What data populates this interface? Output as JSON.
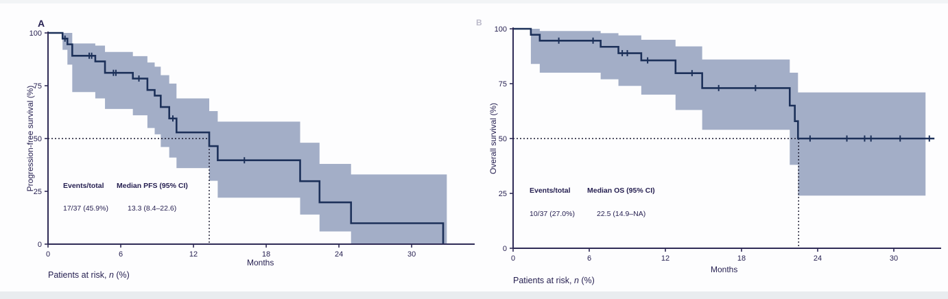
{
  "page": {
    "panel_a": "A",
    "panel_b": "B"
  },
  "colors": {
    "curve": "#1c3059",
    "band": "#a3aec7",
    "text": "#262051",
    "axis": "#2e2a55",
    "dash": "#15152b"
  },
  "chart_data": [
    {
      "type": "line",
      "subtype": "kaplan_meier_step",
      "panel": "A",
      "ylabel": "Progression-free survival (%)",
      "xlabel": "Months",
      "xticks": [
        0,
        6,
        12,
        18,
        24,
        30
      ],
      "yticks": [
        0,
        25,
        50,
        75,
        100
      ],
      "xlim": [
        0,
        35
      ],
      "ylim": [
        0,
        100
      ],
      "grid": false,
      "legend": "none",
      "median": {
        "time_months": 13.3,
        "survival_pct": 50
      },
      "annotation": {
        "events_header": "Events/total",
        "median_header": "Median PFS (95% CI)",
        "events_value": "17/37 (45.9%)",
        "median_value": "13.3  (8.4–22.6)"
      },
      "footer": {
        "prefix": "Patients at risk, ",
        "n": "n",
        "suffix": " (%)"
      },
      "curve_points": [
        [
          0,
          100
        ],
        [
          1.2,
          100
        ],
        [
          1.2,
          97.3
        ],
        [
          1.6,
          97.3
        ],
        [
          1.6,
          94.6
        ],
        [
          2.0,
          94.6
        ],
        [
          2.0,
          89.2
        ],
        [
          3.9,
          89.2
        ],
        [
          3.9,
          86.5
        ],
        [
          4.7,
          86.5
        ],
        [
          4.7,
          81.1
        ],
        [
          7.0,
          81.1
        ],
        [
          7.0,
          78.4
        ],
        [
          8.2,
          78.4
        ],
        [
          8.2,
          73.0
        ],
        [
          8.8,
          73.0
        ],
        [
          8.8,
          70.3
        ],
        [
          9.3,
          70.3
        ],
        [
          9.3,
          64.9
        ],
        [
          10.0,
          64.9
        ],
        [
          10.0,
          59.5
        ],
        [
          10.6,
          59.5
        ],
        [
          10.6,
          52.9
        ],
        [
          13.3,
          52.9
        ],
        [
          13.3,
          46.4
        ],
        [
          14.0,
          46.4
        ],
        [
          14.0,
          39.7
        ],
        [
          20.8,
          39.7
        ],
        [
          20.8,
          29.8
        ],
        [
          22.4,
          29.8
        ],
        [
          22.4,
          19.8
        ],
        [
          25.0,
          19.8
        ],
        [
          25.0,
          9.9
        ],
        [
          32.6,
          9.9
        ],
        [
          32.6,
          0
        ]
      ],
      "censor_marks": [
        [
          1.4,
          97.3
        ],
        [
          3.4,
          89.2
        ],
        [
          3.6,
          89.2
        ],
        [
          5.4,
          81.1
        ],
        [
          5.6,
          81.1
        ],
        [
          7.5,
          78.4
        ],
        [
          10.3,
          59.5
        ],
        [
          16.2,
          39.7
        ]
      ],
      "ci_band": [
        [
          0,
          1.2,
          100,
          100
        ],
        [
          1.2,
          1.6,
          100,
          92
        ],
        [
          1.6,
          2.0,
          100,
          85
        ],
        [
          2.0,
          3.9,
          95,
          72
        ],
        [
          3.9,
          4.7,
          94,
          69
        ],
        [
          4.7,
          7.0,
          91,
          64
        ],
        [
          7.0,
          8.2,
          89,
          61
        ],
        [
          8.2,
          8.8,
          86,
          55
        ],
        [
          8.8,
          9.3,
          84,
          52
        ],
        [
          9.3,
          10.0,
          80,
          46
        ],
        [
          10.0,
          10.6,
          76,
          41
        ],
        [
          10.6,
          13.3,
          69,
          36
        ],
        [
          13.3,
          14.0,
          63,
          30
        ],
        [
          14.0,
          20.8,
          58,
          22
        ],
        [
          20.8,
          22.4,
          48,
          14
        ],
        [
          22.4,
          25.0,
          38,
          6
        ],
        [
          25.0,
          32.9,
          33,
          0
        ]
      ]
    },
    {
      "type": "line",
      "subtype": "kaplan_meier_step",
      "panel": "B",
      "ylabel": "Overall survival (%)",
      "xlabel": "Months",
      "xticks": [
        0,
        6,
        12,
        18,
        24,
        30
      ],
      "yticks": [
        0,
        25,
        50,
        75,
        100
      ],
      "xlim": [
        0,
        35
      ],
      "ylim": [
        0,
        100
      ],
      "grid": false,
      "legend": "none",
      "median": {
        "time_months": 22.5,
        "survival_pct": 50
      },
      "annotation": {
        "events_header": "Events/total",
        "median_header": "Median OS (95% CI)",
        "events_value": "10/37 (27.0%)",
        "median_value": "22.5  (14.9–NA)"
      },
      "footer": {
        "prefix": "Patients at risk, ",
        "n": "n",
        "suffix": " (%)"
      },
      "curve_points": [
        [
          0,
          100
        ],
        [
          1.4,
          100
        ],
        [
          1.4,
          97.3
        ],
        [
          2.1,
          97.3
        ],
        [
          2.1,
          94.6
        ],
        [
          6.9,
          94.6
        ],
        [
          6.9,
          91.8
        ],
        [
          8.3,
          91.8
        ],
        [
          8.3,
          88.9
        ],
        [
          10.1,
          88.9
        ],
        [
          10.1,
          85.6
        ],
        [
          12.8,
          85.6
        ],
        [
          12.8,
          79.8
        ],
        [
          14.9,
          79.8
        ],
        [
          14.9,
          73.0
        ],
        [
          21.8,
          73.0
        ],
        [
          21.8,
          65.0
        ],
        [
          22.2,
          65.0
        ],
        [
          22.2,
          57.9
        ],
        [
          22.45,
          57.9
        ],
        [
          22.45,
          50.0
        ],
        [
          33.2,
          50.0
        ]
      ],
      "censor_marks": [
        [
          3.6,
          94.6
        ],
        [
          6.3,
          94.6
        ],
        [
          8.6,
          88.9
        ],
        [
          9.0,
          88.9
        ],
        [
          10.6,
          85.6
        ],
        [
          14.1,
          79.8
        ],
        [
          16.2,
          73.0
        ],
        [
          19.1,
          73.0
        ],
        [
          23.4,
          50.0
        ],
        [
          26.3,
          50.0
        ],
        [
          27.7,
          50.0
        ],
        [
          28.2,
          50.0
        ],
        [
          30.5,
          50.0
        ],
        [
          32.8,
          50.0
        ]
      ],
      "ci_band": [
        [
          0,
          1.4,
          100,
          100
        ],
        [
          1.4,
          2.1,
          100,
          84
        ],
        [
          2.1,
          6.9,
          99,
          80
        ],
        [
          6.9,
          8.3,
          98,
          77
        ],
        [
          8.3,
          10.1,
          97,
          74
        ],
        [
          10.1,
          12.8,
          95,
          70
        ],
        [
          12.8,
          14.9,
          92,
          63
        ],
        [
          14.9,
          21.8,
          86,
          54
        ],
        [
          21.8,
          22.45,
          80,
          38
        ],
        [
          22.45,
          32.5,
          71,
          24
        ]
      ]
    }
  ]
}
